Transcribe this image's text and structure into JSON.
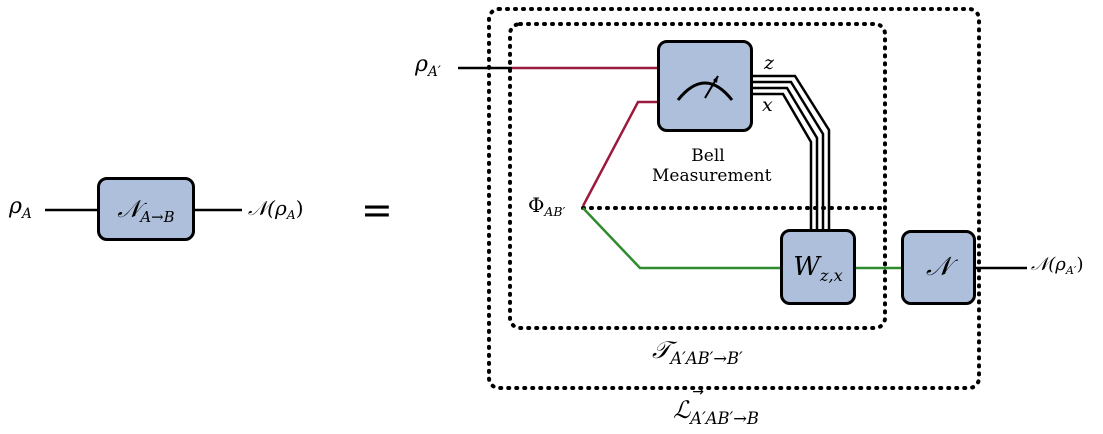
{
  "left_side": {
    "input_label": "ρ",
    "input_sub": "A",
    "channel_label": "𝒩",
    "channel_sub": "A→B",
    "output_label": "𝒩(ρ",
    "output_sub": "A",
    "output_close": ")"
  },
  "equals": "=",
  "right_side": {
    "input_label": "ρ",
    "input_sub": "A′",
    "bell_measurement_line1": "Bell",
    "bell_measurement_line2": "Measurement",
    "z_label": "z",
    "x_label": "x",
    "phi_label": "Φ",
    "phi_sub": "AB′",
    "correction_label": "W",
    "correction_sub": "z,x",
    "channel_label": "𝒩",
    "output_label": "𝒩(ρ",
    "output_sub": "A′",
    "output_close": ")",
    "teleport_label": "𝒯",
    "teleport_sub": "A′AB′→B′",
    "lo_label": "ℒ",
    "lo_arrow": "→",
    "lo_sub": "A′AB′→B"
  },
  "colors": {
    "box_fill": "#adbfdb",
    "red_wire": "#9c1a3e",
    "green_wire": "#2e8b2e",
    "black": "#000000"
  }
}
